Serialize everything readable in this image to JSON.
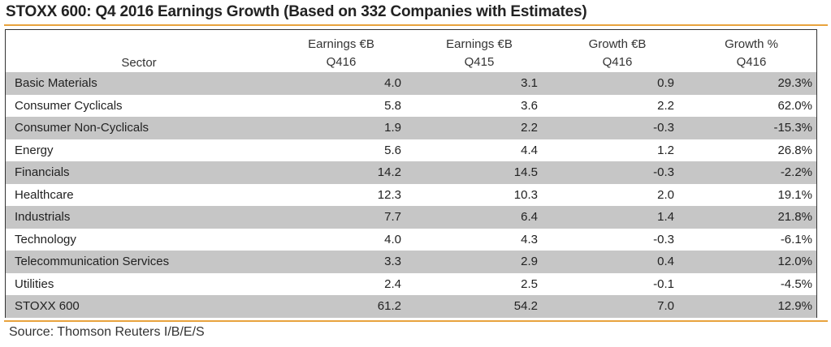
{
  "title": "STOXX 600: Q4 2016 Earnings Growth (Based on 332 Companies with Estimates)",
  "columns": {
    "sector": "Sector",
    "earnings_q416": [
      "Earnings €B",
      "Q416"
    ],
    "earnings_q415": [
      "Earnings €B",
      "Q415"
    ],
    "growth_eur": [
      "Growth €B",
      "Q416"
    ],
    "growth_pct": [
      "Growth %",
      "Q416"
    ]
  },
  "rows": [
    {
      "sector": "Basic Materials",
      "earnings_q416": "4.0",
      "earnings_q415": "3.1",
      "growth_eur": "0.9",
      "growth_pct": "29.3%"
    },
    {
      "sector": "Consumer Cyclicals",
      "earnings_q416": "5.8",
      "earnings_q415": "3.6",
      "growth_eur": "2.2",
      "growth_pct": "62.0%"
    },
    {
      "sector": "Consumer Non-Cyclicals",
      "earnings_q416": "1.9",
      "earnings_q415": "2.2",
      "growth_eur": "-0.3",
      "growth_pct": "-15.3%"
    },
    {
      "sector": "Energy",
      "earnings_q416": "5.6",
      "earnings_q415": "4.4",
      "growth_eur": "1.2",
      "growth_pct": "26.8%"
    },
    {
      "sector": "Financials",
      "earnings_q416": "14.2",
      "earnings_q415": "14.5",
      "growth_eur": "-0.3",
      "growth_pct": "-2.2%"
    },
    {
      "sector": "Healthcare",
      "earnings_q416": "12.3",
      "earnings_q415": "10.3",
      "growth_eur": "2.0",
      "growth_pct": "19.1%"
    },
    {
      "sector": "Industrials",
      "earnings_q416": "7.7",
      "earnings_q415": "6.4",
      "growth_eur": "1.4",
      "growth_pct": "21.8%"
    },
    {
      "sector": "Technology",
      "earnings_q416": "4.0",
      "earnings_q415": "4.3",
      "growth_eur": "-0.3",
      "growth_pct": "-6.1%"
    },
    {
      "sector": "Telecommunication Services",
      "earnings_q416": "3.3",
      "earnings_q415": "2.9",
      "growth_eur": "0.4",
      "growth_pct": "12.0%"
    },
    {
      "sector": "Utilities",
      "earnings_q416": "2.4",
      "earnings_q415": "2.5",
      "growth_eur": "-0.1",
      "growth_pct": "-4.5%"
    },
    {
      "sector": "STOXX 600",
      "earnings_q416": "61.2",
      "earnings_q415": "54.2",
      "growth_eur": "7.0",
      "growth_pct": "12.9%"
    }
  ],
  "source": "Source: Thomson Reuters I/B/E/S",
  "colors": {
    "accent_rule": "#e8a33d",
    "shade": "#c6c6c6",
    "text": "#222222"
  }
}
